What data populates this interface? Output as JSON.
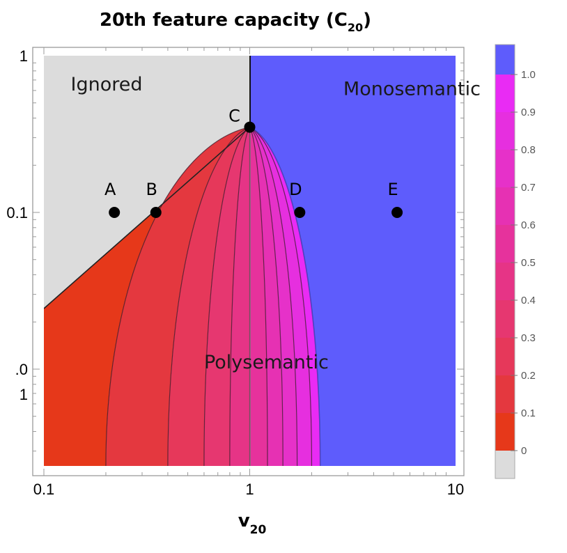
{
  "chart_data": {
    "type": "heatmap",
    "title": "20th feature capacity (C",
    "title_sub": "20",
    "title_close": ")",
    "xlabel": "v",
    "xlabel_sub": "20",
    "ylabel": "",
    "x_scale": "log",
    "y_scale": "log",
    "xlim": [
      0.1,
      10
    ],
    "ylim": [
      0.0025,
      1
    ],
    "x_ticks": [
      {
        "value": 0.1,
        "label": "0.1"
      },
      {
        "value": 1,
        "label": "1"
      },
      {
        "value": 10,
        "label": "10"
      }
    ],
    "y_ticks": [
      {
        "value": 1,
        "label": "1"
      },
      {
        "value": 0.1,
        "label": "0.1"
      },
      {
        "value": 0.01,
        "label": ".0",
        "label_line2": "1"
      }
    ],
    "regions": [
      {
        "name": "Ignored",
        "label": "Ignored",
        "color": "#dcdcdc",
        "x": 0.135,
        "y": 0.6
      },
      {
        "name": "Monosemantic",
        "label": "Monosemantic",
        "color": "#5e5cfc",
        "x": 2.85,
        "y": 0.56
      },
      {
        "name": "Polysemantic",
        "label": "Polysemantic",
        "color": "#e53b2e",
        "x": 0.6,
        "y": 0.0101
      }
    ],
    "boundary_point": {
      "x": 1.0,
      "y": 0.35
    },
    "points": [
      {
        "label": "A",
        "x": 0.22,
        "y": 0.1
      },
      {
        "label": "B",
        "x": 0.35,
        "y": 0.1
      },
      {
        "label": "C",
        "x": 1.0,
        "y": 0.35
      },
      {
        "label": "D",
        "x": 1.75,
        "y": 0.1
      },
      {
        "label": "E",
        "x": 5.2,
        "y": 0.1
      }
    ],
    "contour_levels": [
      0,
      0.1,
      0.2,
      0.3,
      0.4,
      0.5,
      0.6,
      0.7,
      0.8,
      0.9,
      1.0
    ],
    "contour_bottom_x": [
      0.2,
      0.4,
      0.6,
      0.8,
      1.0,
      1.22,
      1.45,
      1.7,
      2.0,
      2.2
    ],
    "colorbar": {
      "min": 0,
      "max": 1.0,
      "ticks": [
        {
          "value": 1.0,
          "label": "1.0"
        },
        {
          "value": 0.9,
          "label": "0.9"
        },
        {
          "value": 0.8,
          "label": "0.8"
        },
        {
          "value": 0.7,
          "label": "0.7"
        },
        {
          "value": 0.6,
          "label": "0.6"
        },
        {
          "value": 0.5,
          "label": "0.5"
        },
        {
          "value": 0.4,
          "label": "0.4"
        },
        {
          "value": 0.3,
          "label": "0.3"
        },
        {
          "value": 0.2,
          "label": "0.2"
        },
        {
          "value": 0.1,
          "label": "0.1"
        },
        {
          "value": 0,
          "label": "0"
        }
      ],
      "band_colors": [
        "#e6381a",
        "#e4383f",
        "#e6385a",
        "#e63770",
        "#e63486",
        "#e6329c",
        "#e631b3",
        "#e631c9",
        "#e62fdf",
        "#e92bf4",
        "#5e5cfc"
      ],
      "ignored_color": "#dcdcdc"
    }
  }
}
